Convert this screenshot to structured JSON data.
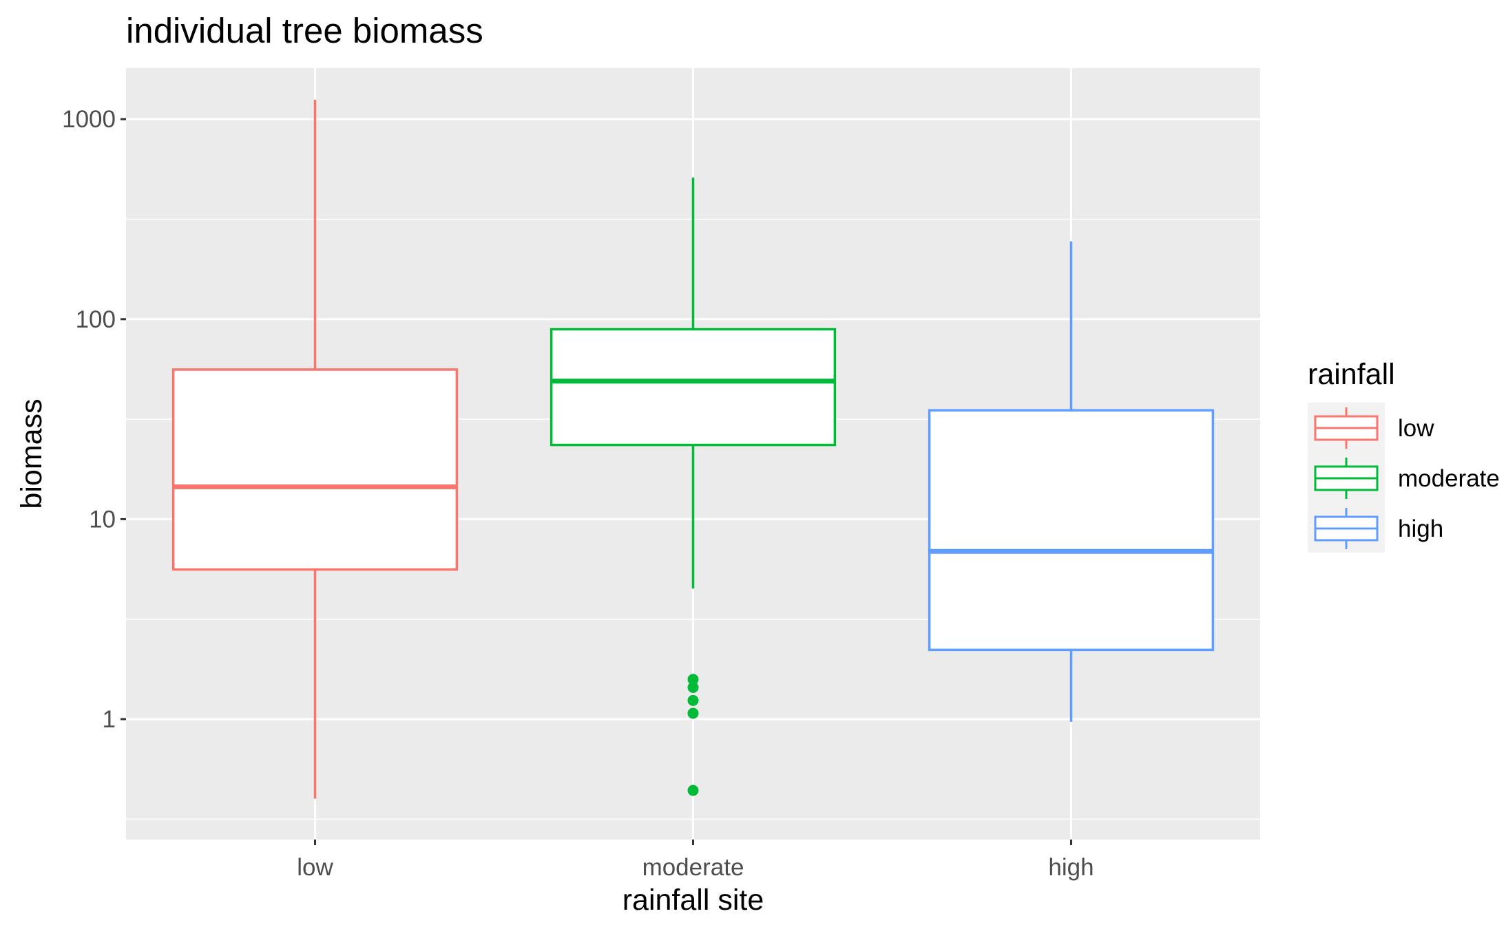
{
  "chart_data": {
    "type": "boxplot",
    "title": "individual tree biomass",
    "xlabel": "rainfall site",
    "ylabel": "biomass",
    "y_scale": "log10",
    "ylim": [
      0.25,
      1800
    ],
    "y_ticks": [
      1,
      10,
      100,
      1000
    ],
    "y_tick_labels": [
      "1",
      "10",
      "100",
      "1000"
    ],
    "y_minor_ticks": [
      0.316,
      3.16,
      31.6,
      316
    ],
    "categories": [
      "low",
      "moderate",
      "high"
    ],
    "grid": true,
    "legend": {
      "title": "rainfall",
      "position": "right",
      "entries": [
        "low",
        "moderate",
        "high"
      ]
    },
    "colors": [
      "#F8766D",
      "#00BA38",
      "#619CFF"
    ],
    "panel_background": "#EBEBEB",
    "boxes": [
      {
        "category": "low",
        "whisker_low": 0.4,
        "q1": 5.6,
        "median": 14.5,
        "q3": 56,
        "whisker_high": 1250,
        "outliers": []
      },
      {
        "category": "moderate",
        "whisker_low": 4.5,
        "q1": 23.5,
        "median": 49,
        "q3": 89,
        "whisker_high": 510,
        "outliers": [
          0.44,
          1.07,
          1.24,
          1.44,
          1.58
        ]
      },
      {
        "category": "high",
        "whisker_low": 0.97,
        "q1": 2.22,
        "median": 6.9,
        "q3": 35,
        "whisker_high": 245,
        "outliers": []
      }
    ]
  }
}
